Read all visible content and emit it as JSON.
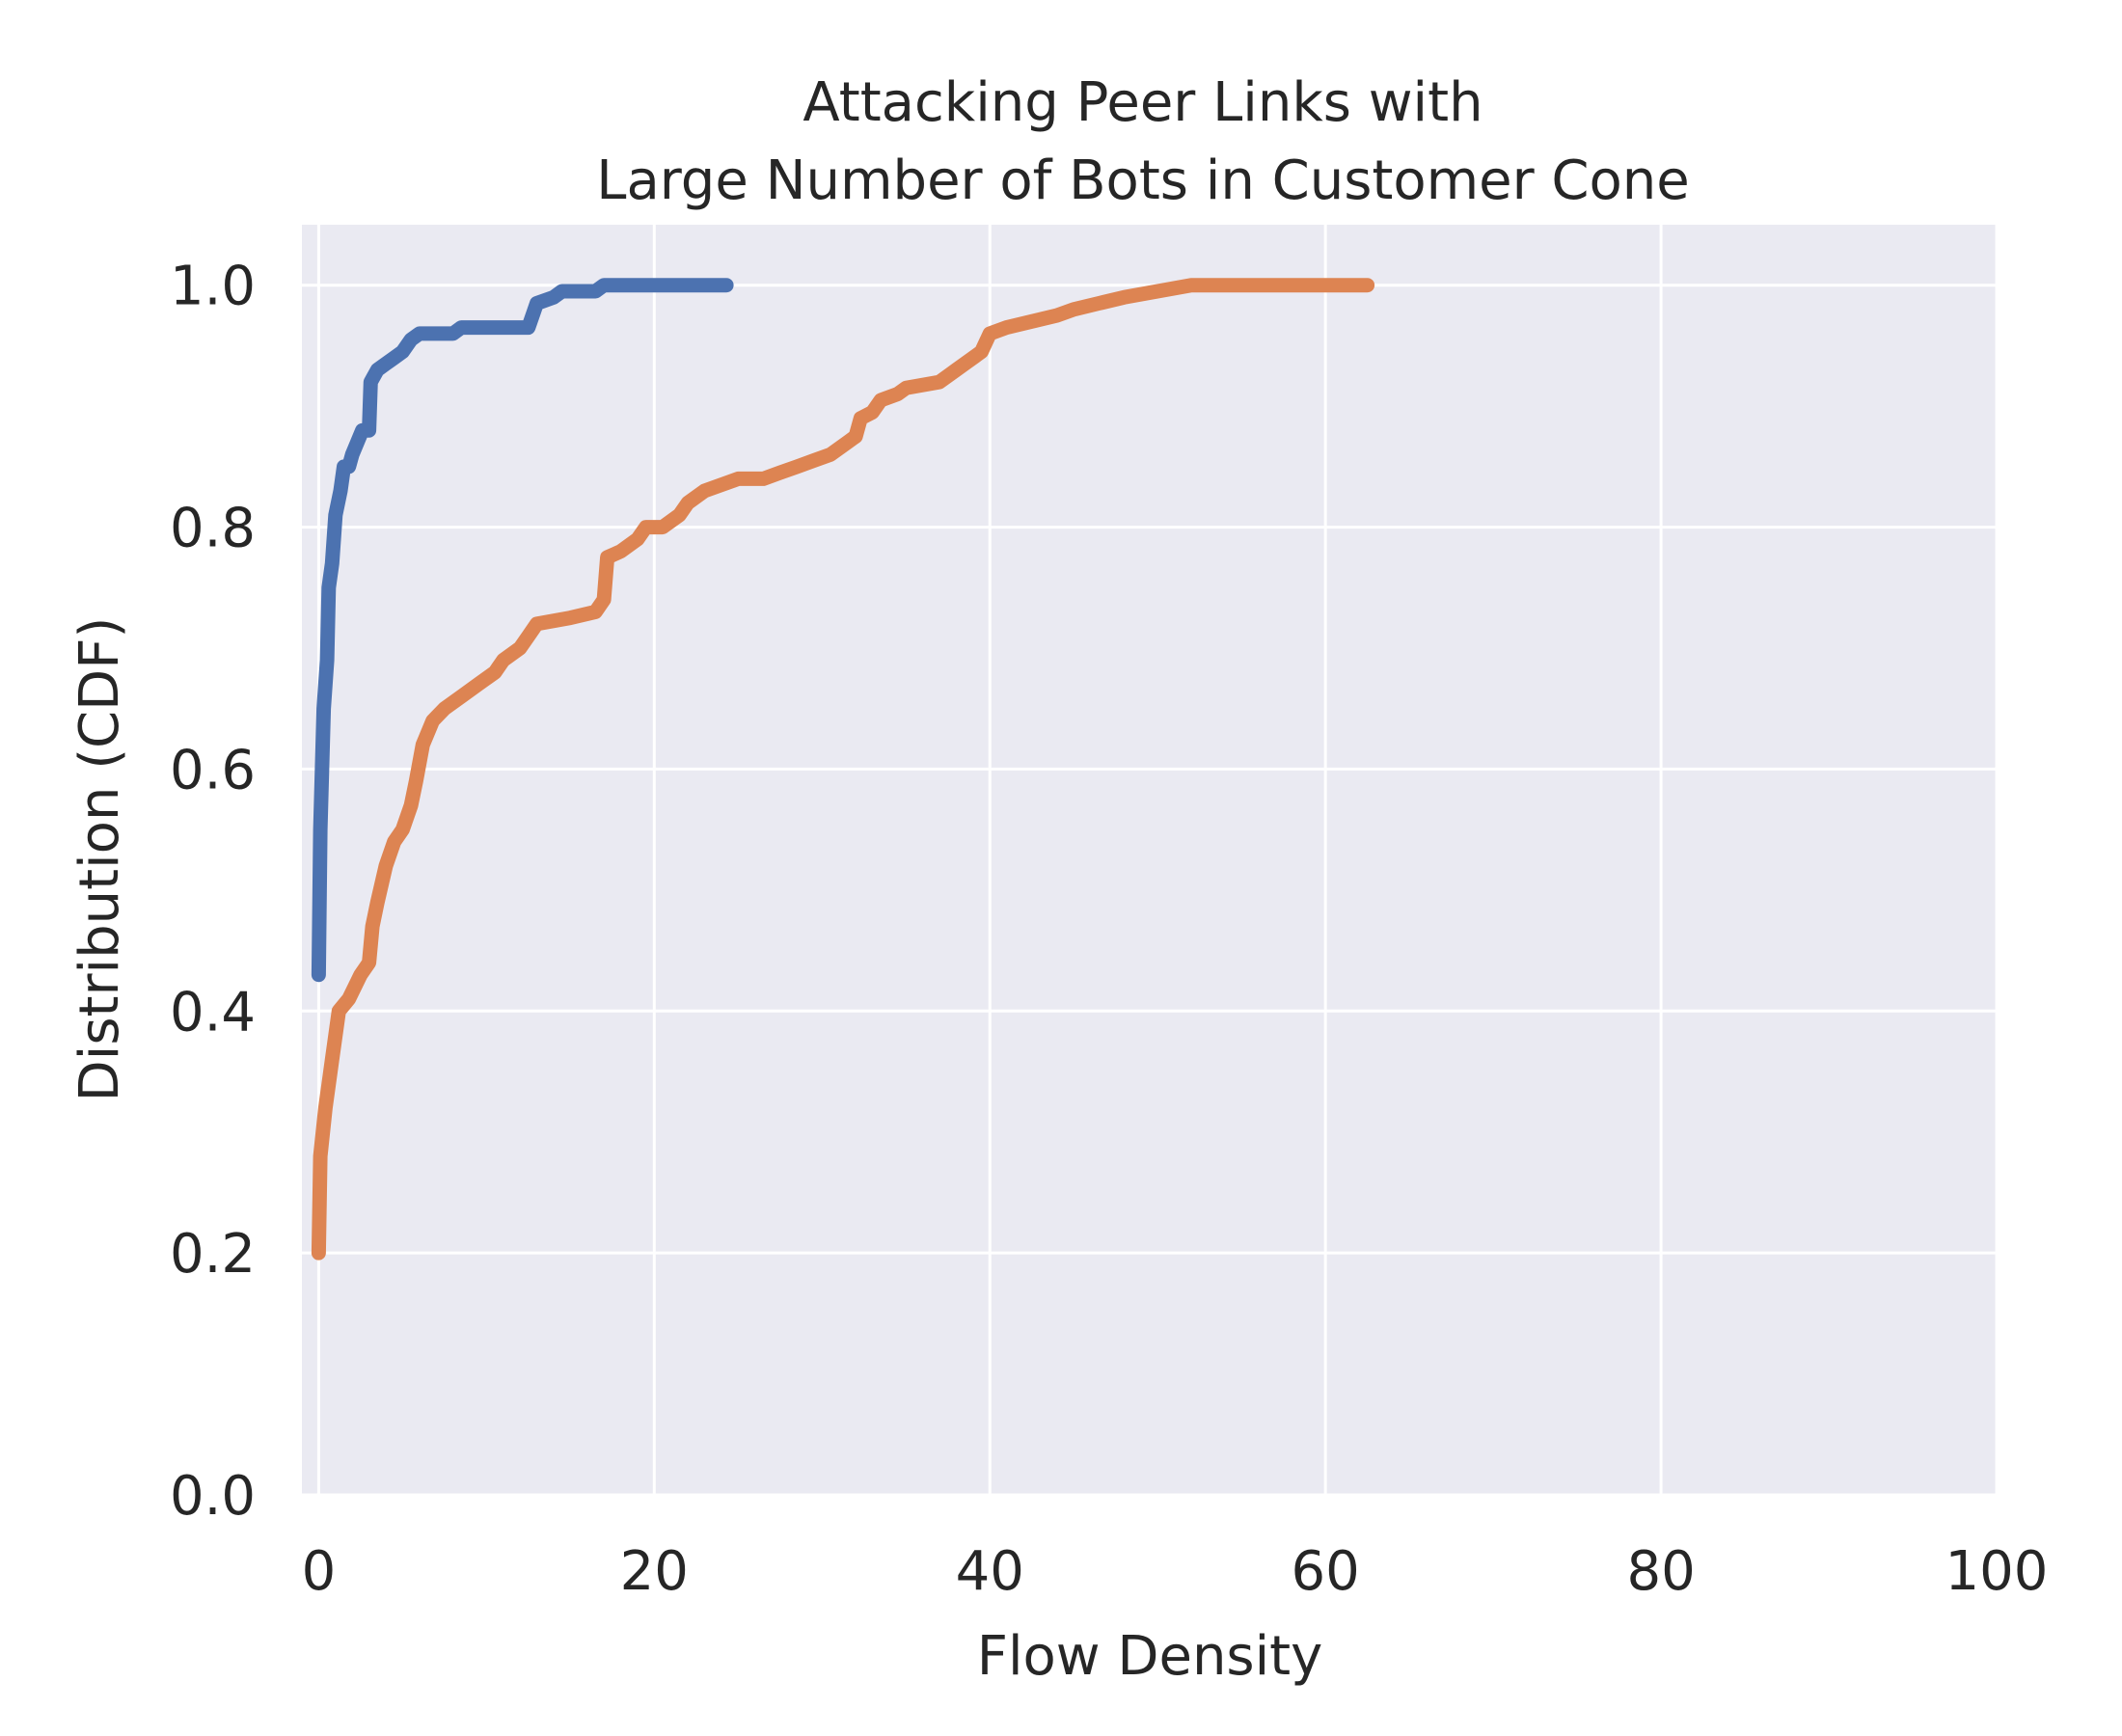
{
  "chart_data": {
    "type": "line",
    "title": [
      "Attacking Peer Links with",
      "Large Number of Bots in Customer Cone"
    ],
    "xlabel": "Flow Density",
    "ylabel": "Distribution (CDF)",
    "xlim": [
      -1,
      100
    ],
    "ylim": [
      0.0,
      1.05
    ],
    "xticks": [
      0,
      20,
      40,
      60,
      80,
      100
    ],
    "yticks": [
      0.0,
      0.2,
      0.4,
      0.6,
      0.8,
      1.0
    ],
    "grid": true,
    "colors": {
      "background": "#EAEAF2",
      "grid": "#FFFFFF",
      "text": "#262626"
    },
    "series": [
      {
        "color": "#4C72B0",
        "points": [
          [
            0,
            0.43
          ],
          [
            0.1,
            0.55
          ],
          [
            0.3,
            0.65
          ],
          [
            0.5,
            0.69
          ],
          [
            0.6,
            0.75
          ],
          [
            0.8,
            0.77
          ],
          [
            1.0,
            0.81
          ],
          [
            1.3,
            0.83
          ],
          [
            1.5,
            0.85
          ],
          [
            1.8,
            0.85
          ],
          [
            2.0,
            0.86
          ],
          [
            2.3,
            0.87
          ],
          [
            2.6,
            0.88
          ],
          [
            3.0,
            0.88
          ],
          [
            3.1,
            0.92
          ],
          [
            3.5,
            0.93
          ],
          [
            4.0,
            0.935
          ],
          [
            4.5,
            0.94
          ],
          [
            5.0,
            0.945
          ],
          [
            5.5,
            0.955
          ],
          [
            6.0,
            0.96
          ],
          [
            8.0,
            0.96
          ],
          [
            8.5,
            0.965
          ],
          [
            12.5,
            0.965
          ],
          [
            13.0,
            0.985
          ],
          [
            14.0,
            0.99
          ],
          [
            14.5,
            0.995
          ],
          [
            16.5,
            0.995
          ],
          [
            17.0,
            1.0
          ],
          [
            24.3,
            1.0
          ]
        ]
      },
      {
        "color": "#DD8452",
        "points": [
          [
            0,
            0.2
          ],
          [
            0.1,
            0.28
          ],
          [
            0.4,
            0.32
          ],
          [
            0.8,
            0.36
          ],
          [
            1.2,
            0.4
          ],
          [
            1.8,
            0.41
          ],
          [
            2.5,
            0.43
          ],
          [
            3.0,
            0.44
          ],
          [
            3.2,
            0.47
          ],
          [
            3.5,
            0.49
          ],
          [
            4.0,
            0.52
          ],
          [
            4.5,
            0.54
          ],
          [
            5.0,
            0.55
          ],
          [
            5.5,
            0.57
          ],
          [
            5.8,
            0.59
          ],
          [
            6.2,
            0.62
          ],
          [
            6.8,
            0.64
          ],
          [
            7.5,
            0.65
          ],
          [
            8.5,
            0.66
          ],
          [
            9.5,
            0.67
          ],
          [
            10.5,
            0.68
          ],
          [
            11.0,
            0.69
          ],
          [
            12.0,
            0.7
          ],
          [
            12.5,
            0.71
          ],
          [
            13.0,
            0.72
          ],
          [
            15.0,
            0.725
          ],
          [
            16.5,
            0.73
          ],
          [
            17.0,
            0.74
          ],
          [
            17.2,
            0.775
          ],
          [
            18.0,
            0.78
          ],
          [
            19.0,
            0.79
          ],
          [
            19.5,
            0.8
          ],
          [
            20.5,
            0.8
          ],
          [
            21.5,
            0.81
          ],
          [
            22.0,
            0.82
          ],
          [
            23.0,
            0.83
          ],
          [
            24.0,
            0.835
          ],
          [
            25.0,
            0.84
          ],
          [
            26.5,
            0.84
          ],
          [
            27.5,
            0.845
          ],
          [
            28.5,
            0.85
          ],
          [
            29.5,
            0.855
          ],
          [
            30.5,
            0.86
          ],
          [
            31.5,
            0.87
          ],
          [
            32.0,
            0.875
          ],
          [
            32.3,
            0.89
          ],
          [
            33.0,
            0.895
          ],
          [
            33.5,
            0.905
          ],
          [
            34.5,
            0.91
          ],
          [
            35.0,
            0.915
          ],
          [
            37.0,
            0.92
          ],
          [
            38.0,
            0.93
          ],
          [
            39.0,
            0.94
          ],
          [
            39.5,
            0.945
          ],
          [
            40.0,
            0.96
          ],
          [
            41.0,
            0.965
          ],
          [
            42.5,
            0.97
          ],
          [
            44.0,
            0.975
          ],
          [
            45.0,
            0.98
          ],
          [
            46.5,
            0.985
          ],
          [
            48.0,
            0.99
          ],
          [
            50.0,
            0.995
          ],
          [
            52.0,
            1.0
          ],
          [
            62.5,
            1.0
          ]
        ]
      }
    ]
  }
}
